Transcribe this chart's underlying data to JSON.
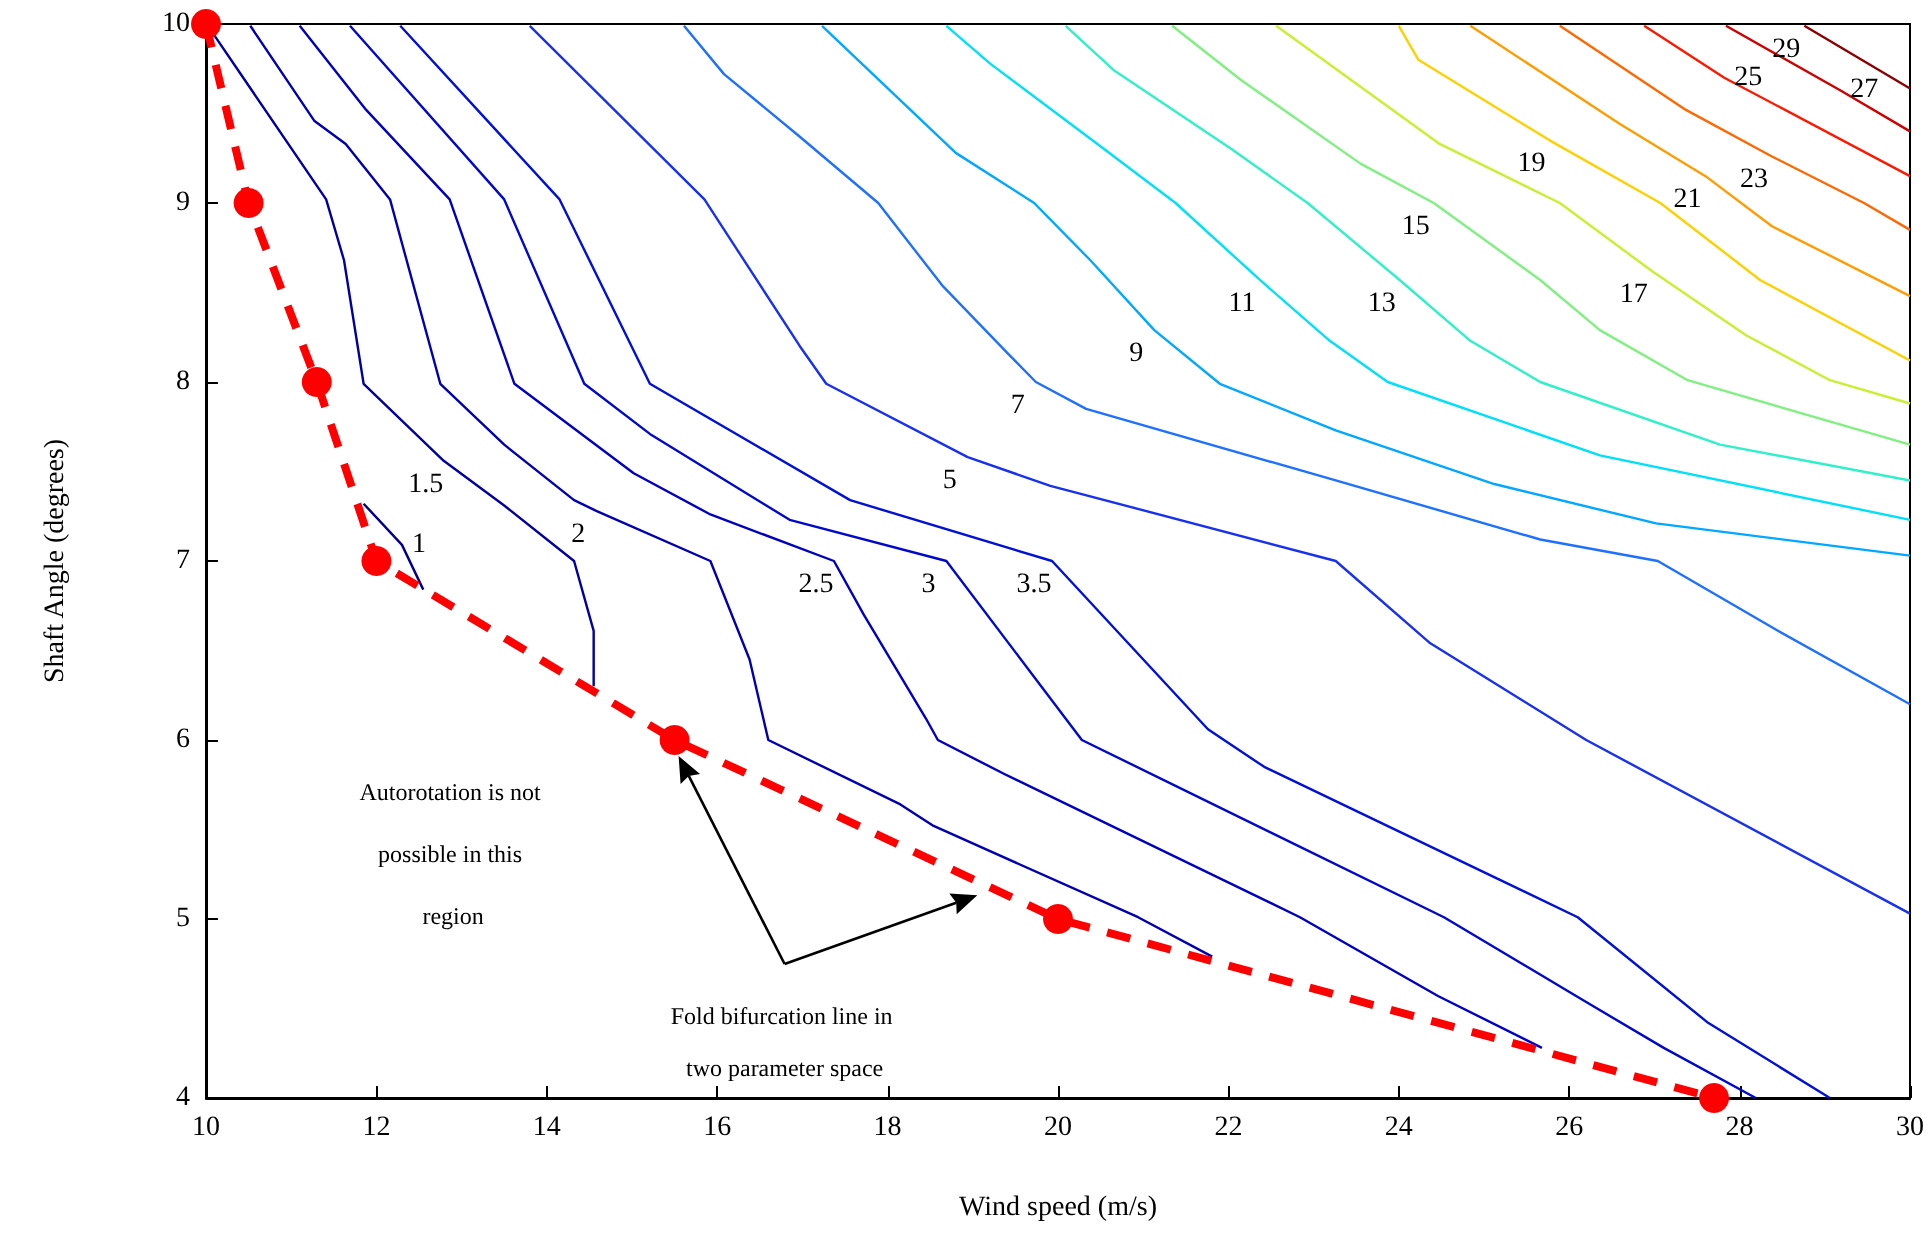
{
  "chart_data": {
    "type": "line",
    "xlabel": "Wind speed (m/s)",
    "ylabel": "Shaft Angle (degrees)",
    "xlim": [
      10,
      30
    ],
    "xticks": [
      10,
      12,
      14,
      16,
      18,
      20,
      22,
      24,
      26,
      28,
      30
    ],
    "ylim": [
      4,
      10
    ],
    "yticks": [
      4,
      5,
      6,
      7,
      8,
      9,
      10
    ],
    "grid": false,
    "legend": false,
    "marker": "none",
    "annotations": [
      "Autorotation is not possible in this region",
      "Fold bifurcation line in two parameter space"
    ],
    "series": [
      {
        "name": "1",
        "color": "#00008f",
        "x": [
          11.85,
          12.3,
          12.55
        ],
        "values": [
          7.32,
          7.09,
          6.84
        ]
      },
      {
        "name": "1.5",
        "color": "#0000a0",
        "x": [
          10.05,
          11.41,
          11.62,
          11.85,
          12.79,
          13.5,
          14.32,
          14.55,
          14.55
        ],
        "values": [
          9.97,
          9.02,
          8.68,
          7.99,
          7.56,
          7.31,
          7.0,
          6.61,
          6.3
        ]
      },
      {
        "name": "2",
        "color": "#0000b0",
        "x": [
          10.52,
          11.27,
          11.64,
          12.16,
          12.75,
          13.5,
          14.32,
          14.58,
          15.92,
          16.38,
          16.6,
          18.15,
          18.54,
          20.94,
          21.81
        ],
        "values": [
          9.99,
          9.46,
          9.33,
          9.02,
          7.99,
          7.65,
          7.34,
          7.28,
          7.0,
          6.45,
          6.0,
          5.64,
          5.52,
          5.01,
          4.79
        ]
      },
      {
        "name": "2.5",
        "color": "#0000c0",
        "x": [
          11.1,
          11.88,
          12.86,
          13.62,
          15.02,
          15.92,
          17.37,
          17.72,
          18.45,
          18.59,
          19.37,
          22.84,
          24.46,
          25.68
        ],
        "values": [
          9.99,
          9.52,
          9.02,
          7.99,
          7.49,
          7.26,
          7.0,
          6.7,
          6.12,
          6.0,
          5.81,
          5.01,
          4.57,
          4.28
        ]
      },
      {
        "name": "3",
        "color": "#0008cc",
        "x": [
          11.69,
          13.5,
          14.44,
          15.21,
          16.85,
          18.69,
          20.28,
          24.53,
          26.15,
          27.11,
          28.19
        ],
        "values": [
          9.99,
          9.02,
          7.99,
          7.71,
          7.23,
          7.0,
          6.0,
          5.01,
          4.55,
          4.28,
          4.0
        ]
      },
      {
        "name": "3.5",
        "color": "#0010d8",
        "x": [
          12.28,
          14.15,
          15.21,
          17.56,
          19.93,
          21.76,
          22.42,
          26.1,
          27.63,
          29.06
        ],
        "values": [
          9.99,
          9.02,
          7.99,
          7.34,
          7.0,
          6.06,
          5.85,
          5.01,
          4.42,
          4.0
        ]
      },
      {
        "name": "5",
        "color": "#1830f0",
        "x": [
          13.8,
          15.85,
          16.97,
          17.28,
          18.94,
          19.91,
          23.26,
          24.37,
          26.2,
          30.0
        ],
        "values": [
          9.99,
          9.02,
          8.2,
          7.99,
          7.58,
          7.42,
          7.0,
          6.54,
          6.0,
          5.03
        ]
      },
      {
        "name": "7",
        "color": "#1e70ff",
        "x": [
          15.61,
          16.08,
          16.97,
          17.89,
          18.64,
          19.41,
          19.74,
          20.33,
          23.26,
          25.66,
          27.04,
          28.45,
          30.0
        ],
        "values": [
          9.99,
          9.72,
          9.37,
          9.0,
          8.54,
          8.16,
          8.0,
          7.85,
          7.45,
          7.12,
          7.0,
          6.61,
          6.2
        ]
      },
      {
        "name": "9",
        "color": "#00a8ff",
        "x": [
          17.23,
          18.8,
          19.72,
          20.38,
          21.13,
          21.9,
          23.26,
          25.12,
          27.02,
          30.0
        ],
        "values": [
          9.99,
          9.28,
          9.0,
          8.68,
          8.29,
          7.99,
          7.73,
          7.43,
          7.21,
          7.03
        ]
      },
      {
        "name": "11",
        "color": "#00e0f8",
        "x": [
          18.69,
          19.2,
          20.49,
          21.38,
          22.37,
          23.19,
          23.87,
          26.36,
          30.0
        ],
        "values": [
          9.99,
          9.78,
          9.32,
          9.0,
          8.57,
          8.23,
          8.0,
          7.59,
          7.23
        ]
      },
      {
        "name": "13",
        "color": "#30f0c8",
        "x": [
          20.09,
          20.66,
          22.04,
          22.93,
          24.01,
          24.84,
          25.66,
          27.77,
          30.0
        ],
        "values": [
          9.99,
          9.74,
          9.3,
          9.0,
          8.57,
          8.23,
          8.0,
          7.65,
          7.45
        ]
      },
      {
        "name": "15",
        "color": "#80f080",
        "x": [
          21.34,
          22.14,
          23.55,
          24.41,
          25.66,
          26.36,
          27.39,
          30.0
        ],
        "values": [
          9.99,
          9.69,
          9.22,
          9.0,
          8.57,
          8.29,
          8.01,
          7.65
        ]
      },
      {
        "name": "17",
        "color": "#c8f030",
        "x": [
          22.56,
          24.48,
          25.89,
          26.97,
          28.08,
          29.06,
          30.0
        ],
        "values": [
          9.99,
          9.33,
          9.0,
          8.62,
          8.26,
          8.01,
          7.88
        ]
      },
      {
        "name": "19",
        "color": "#ffd000",
        "x": [
          24.0,
          24.23,
          25.77,
          27.07,
          28.24,
          30.0
        ],
        "values": [
          9.99,
          9.8,
          9.35,
          9.0,
          8.57,
          8.12
        ]
      },
      {
        "name": "21",
        "color": "#ff9c00",
        "x": [
          24.84,
          26.6,
          27.6,
          28.38,
          30.0
        ],
        "values": [
          9.99,
          9.44,
          9.15,
          8.87,
          8.48
        ]
      },
      {
        "name": "23",
        "color": "#ff6800",
        "x": [
          25.89,
          27.37,
          28.38,
          29.46,
          30.0
        ],
        "values": [
          9.99,
          9.52,
          9.26,
          9.0,
          8.85
        ]
      },
      {
        "name": "25",
        "color": "#ff1800",
        "x": [
          26.88,
          27.82,
          30.0
        ],
        "values": [
          9.99,
          9.7,
          9.15
        ]
      },
      {
        "name": "27",
        "color": "#d00000",
        "x": [
          27.84,
          29.18,
          30.0
        ],
        "values": [
          9.99,
          9.63,
          9.4
        ]
      },
      {
        "name": "29",
        "color": "#8c0000",
        "x": [
          28.76,
          30.0
        ],
        "values": [
          9.99,
          9.64
        ]
      },
      {
        "color": "#ff0000",
        "marker": "circle",
        "line_style": "dashed",
        "x": [
          10,
          10.5,
          11.3,
          12,
          15.5,
          20,
          27.7
        ],
        "values": [
          10,
          9,
          8,
          7,
          6,
          5,
          4
        ]
      }
    ]
  }
}
